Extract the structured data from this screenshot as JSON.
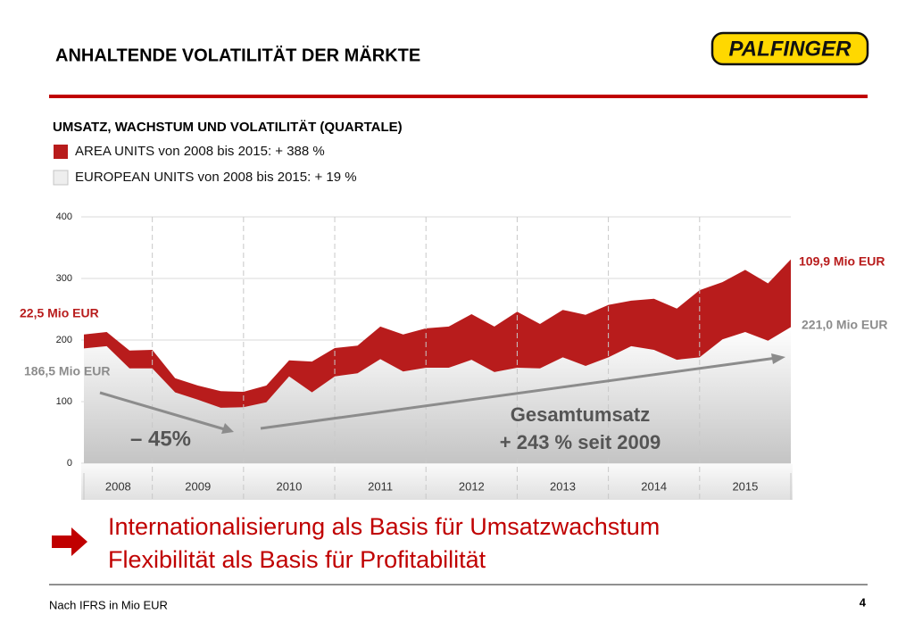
{
  "header": {
    "title": "ANHALTENDE VOLATILITÄT DER MÄRKTE",
    "logo": "PALFINGER"
  },
  "chart_data": {
    "type": "stacked_area",
    "title": "UMSATZ, WACHSTUM UND VOLATILITÄT (QUARTALE)",
    "categories": [
      null,
      null,
      null,
      null,
      null,
      null,
      null,
      null,
      null,
      null,
      null,
      null,
      null,
      null,
      null,
      null,
      null,
      null,
      null,
      null,
      null,
      null,
      null,
      null,
      null,
      null,
      null,
      null,
      null,
      null,
      null,
      null
    ],
    "year_labels": [
      "2008",
      "2009",
      "2010",
      "2011",
      "2012",
      "2013",
      "2014",
      "2015"
    ],
    "series": [
      {
        "name": "AREA UNITS von 2008 bis 2015: + 388 %",
        "color": "#b81c1c",
        "values": [
          22.5,
          23,
          29,
          30,
          23,
          23,
          27,
          25,
          27,
          26,
          50,
          46,
          45,
          53,
          60,
          64,
          67,
          74,
          74,
          91,
          72,
          77,
          83,
          85,
          74,
          83,
          83,
          109,
          93,
          101,
          93,
          109.9
        ],
        "value_labels": [
          "22,5 Mio EUR",
          null,
          null,
          null,
          null,
          null,
          null,
          null,
          null,
          null,
          null,
          null,
          null,
          null,
          null,
          null,
          null,
          null,
          null,
          null,
          null,
          null,
          null,
          null,
          null,
          null,
          null,
          null,
          null,
          null,
          null,
          "109,9 Mio EUR"
        ]
      },
      {
        "name": "EUROPEAN UNITS von 2008 bis 2015: + 19 %",
        "color": "#c4c4c4",
        "values": [
          186.5,
          190,
          154,
          154,
          115,
          103,
          90,
          91,
          99,
          141,
          115,
          141,
          146,
          169,
          149,
          155,
          155,
          168,
          148,
          155,
          154,
          172,
          158,
          172,
          190,
          184,
          168,
          172,
          201,
          213,
          199,
          221
        ],
        "value_labels": [
          "186,5 Mio EUR",
          null,
          null,
          null,
          null,
          null,
          null,
          null,
          null,
          null,
          null,
          null,
          null,
          null,
          null,
          null,
          null,
          null,
          null,
          null,
          null,
          null,
          null,
          null,
          null,
          null,
          null,
          null,
          null,
          null,
          null,
          "221,0 Mio EUR"
        ]
      }
    ],
    "ylim": [
      0,
      400
    ],
    "yticks": [
      0,
      100,
      200,
      300,
      400
    ],
    "grid": true,
    "annotations": [
      "– 45%",
      "Gesamtumsatz",
      "+ 243 % seit 2009"
    ]
  },
  "conclusions": [
    "Internationalisierung als Basis für Umsatzwachstum",
    "Flexibilität als Basis für Profitabilität"
  ],
  "footer": {
    "note": "Nach IFRS in Mio EUR",
    "page": "4"
  }
}
